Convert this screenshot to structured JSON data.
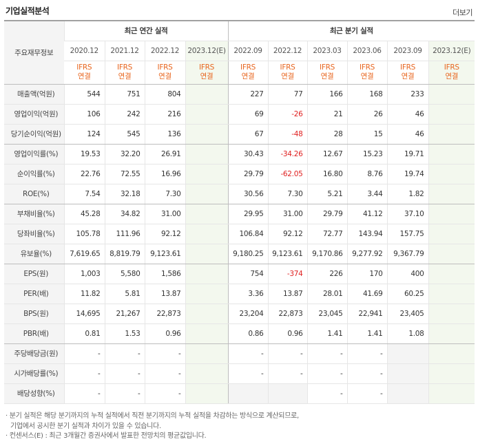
{
  "header": {
    "title": "기업실적분석",
    "more_label": "더보기"
  },
  "table": {
    "corner_label": "주요재무정보",
    "annual_group": "최근 연간 실적",
    "quarter_group": "최근 분기 실적",
    "annual_dates": [
      "2020.12",
      "2021.12",
      "2022.12",
      "2023.12(E)"
    ],
    "quarter_dates": [
      "2022.09",
      "2022.12",
      "2023.03",
      "2023.06",
      "2023.09",
      "2023.12(E)"
    ],
    "ifrs_line1": "IFRS",
    "ifrs_line2": "연결",
    "rows": [
      {
        "label": "매출액(억원)",
        "annual": [
          "544",
          "751",
          "804",
          ""
        ],
        "quarter": [
          "227",
          "77",
          "166",
          "168",
          "233",
          ""
        ]
      },
      {
        "label": "영업이익(억원)",
        "annual": [
          "106",
          "242",
          "216",
          ""
        ],
        "quarter": [
          "69",
          "-26",
          "21",
          "26",
          "46",
          ""
        ]
      },
      {
        "label": "당기순이익(억원)",
        "annual": [
          "124",
          "545",
          "136",
          ""
        ],
        "quarter": [
          "67",
          "-48",
          "28",
          "15",
          "46",
          ""
        ]
      },
      {
        "label": "영업이익률(%)",
        "annual": [
          "19.53",
          "32.20",
          "26.91",
          ""
        ],
        "quarter": [
          "30.43",
          "-34.26",
          "12.67",
          "15.23",
          "19.71",
          ""
        ]
      },
      {
        "label": "순이익률(%)",
        "annual": [
          "22.76",
          "72.55",
          "16.96",
          ""
        ],
        "quarter": [
          "29.79",
          "-62.05",
          "16.80",
          "8.76",
          "19.74",
          ""
        ]
      },
      {
        "label": "ROE(%)",
        "annual": [
          "7.54",
          "32.18",
          "7.30",
          ""
        ],
        "quarter": [
          "30.56",
          "7.30",
          "5.21",
          "3.44",
          "1.82",
          ""
        ]
      },
      {
        "label": "부채비율(%)",
        "annual": [
          "45.28",
          "34.82",
          "31.00",
          ""
        ],
        "quarter": [
          "29.95",
          "31.00",
          "29.79",
          "41.12",
          "37.10",
          ""
        ]
      },
      {
        "label": "당좌비율(%)",
        "annual": [
          "105.78",
          "111.96",
          "92.12",
          ""
        ],
        "quarter": [
          "106.84",
          "92.12",
          "72.77",
          "143.94",
          "157.75",
          ""
        ]
      },
      {
        "label": "유보율(%)",
        "annual": [
          "7,619.65",
          "8,819.79",
          "9,123.61",
          ""
        ],
        "quarter": [
          "9,180.25",
          "9,123.61",
          "9,170.86",
          "9,277.92",
          "9,367.79",
          ""
        ]
      },
      {
        "label": "EPS(원)",
        "annual": [
          "1,003",
          "5,580",
          "1,586",
          ""
        ],
        "quarter": [
          "754",
          "-374",
          "226",
          "170",
          "400",
          ""
        ]
      },
      {
        "label": "PER(배)",
        "annual": [
          "11.82",
          "5.81",
          "13.87",
          ""
        ],
        "quarter": [
          "3.36",
          "13.87",
          "28.01",
          "41.69",
          "60.25",
          ""
        ]
      },
      {
        "label": "BPS(원)",
        "annual": [
          "14,695",
          "21,267",
          "22,873",
          ""
        ],
        "quarter": [
          "23,204",
          "22,873",
          "23,045",
          "22,941",
          "23,405",
          ""
        ]
      },
      {
        "label": "PBR(배)",
        "annual": [
          "0.81",
          "1.53",
          "0.96",
          ""
        ],
        "quarter": [
          "0.86",
          "0.96",
          "1.41",
          "1.41",
          "1.08",
          ""
        ]
      },
      {
        "label": "주당배당금(원)",
        "annual": [
          "-",
          "-",
          "-",
          ""
        ],
        "quarter": [
          "-",
          "-",
          "-",
          "-",
          "",
          ""
        ]
      },
      {
        "label": "시가배당률(%)",
        "annual": [
          "-",
          "-",
          "-",
          ""
        ],
        "quarter": [
          "-",
          "-",
          "-",
          "-",
          "",
          ""
        ]
      },
      {
        "label": "배당성향(%)",
        "annual": [
          "-",
          "-",
          "-",
          ""
        ],
        "quarter": [
          "",
          "",
          "-",
          "-",
          "",
          ""
        ]
      }
    ]
  },
  "notes": {
    "line1": "· 분기 실적은 해당 분기까지의 누적 실적에서 직전 분기까지의 누적 실적을 차감하는 방식으로 계산되므로,",
    "line2": "기업에서 공시한 분기 실적과 차이가 있을 수 있습니다.",
    "line3": "· 컨센서스(E) : 최근 3개월간 증권사에서 발표한 전망치의 평균값입니다."
  }
}
